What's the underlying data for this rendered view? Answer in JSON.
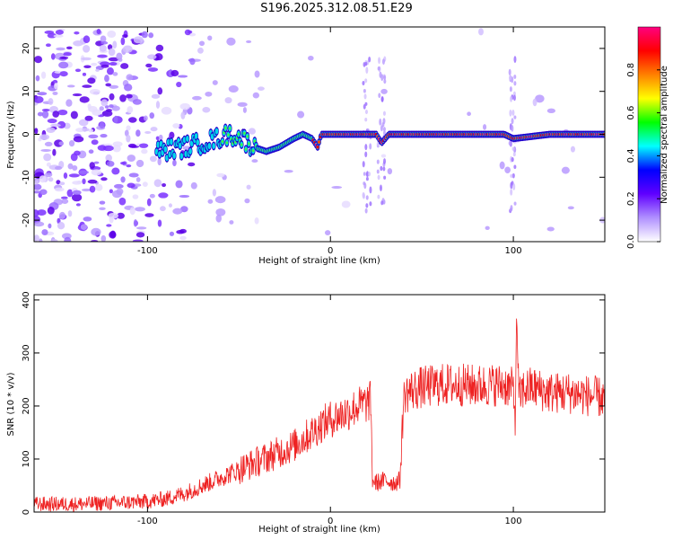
{
  "title": "S196.2025.312.08.51.E29",
  "chart_data": [
    {
      "type": "heatmap",
      "xlabel": "Height of straight line (km)",
      "ylabel": "Frequency (Hz)",
      "xlim": [
        -162,
        150
      ],
      "ylim": [
        -25,
        25
      ],
      "xticks": [
        -100,
        0,
        100
      ],
      "yticks": [
        -20,
        -10,
        0,
        10,
        20
      ],
      "colorbar": {
        "label": "Normalized spectral amplitude",
        "range": [
          0,
          1
        ],
        "ticks": [
          "0.0",
          "0.2",
          "0.4",
          "0.6",
          "0.8"
        ],
        "colors": [
          "#ffffff",
          "#b090ff",
          "#6000ff",
          "#0000ff",
          "#00ffff",
          "#00ff00",
          "#ffff00",
          "#ff8000",
          "#ff0000",
          "#ff0080"
        ]
      },
      "ridge": {
        "name": "dominant frequency",
        "x": [
          -95,
          -80,
          -70,
          -62,
          -55,
          -48,
          -42,
          -35,
          -28,
          -20,
          -15,
          -10,
          -7,
          -5,
          0,
          10,
          20,
          25,
          28,
          32,
          40,
          60,
          80,
          95,
          100,
          120,
          150
        ],
        "y": [
          -4,
          -3,
          -2,
          -1,
          0,
          -1,
          -3,
          -4,
          -3,
          -1,
          0,
          -1,
          -3,
          0,
          0,
          0,
          0,
          0,
          -2,
          0,
          0,
          0,
          0,
          0,
          -1,
          0,
          0
        ],
        "peak_amplitude_x_range": [
          -10,
          150
        ]
      }
    },
    {
      "type": "line",
      "xlabel": "Height of straight line (km)",
      "ylabel": "SNR (10 * v/v)",
      "xlim": [
        -162,
        150
      ],
      "ylim": [
        0,
        410
      ],
      "xticks": [
        -100,
        0,
        100
      ],
      "yticks": [
        0,
        100,
        200,
        300,
        400
      ],
      "series": [
        {
          "color": "#ee2222",
          "x": [
            -162,
            -140,
            -120,
            -100,
            -90,
            -80,
            -70,
            -60,
            -50,
            -40,
            -30,
            -20,
            -10,
            -5,
            0,
            5,
            10,
            15,
            20,
            22,
            23,
            25,
            30,
            35,
            38,
            40,
            41,
            45,
            50,
            60,
            70,
            80,
            90,
            95,
            100,
            101,
            102,
            103,
            105,
            110,
            120,
            130,
            140,
            150
          ],
          "y": [
            15,
            15,
            17,
            20,
            25,
            35,
            50,
            65,
            80,
            95,
            110,
            125,
            150,
            165,
            175,
            182,
            190,
            200,
            205,
            210,
            60,
            55,
            60,
            55,
            60,
            210,
            225,
            230,
            235,
            240,
            240,
            238,
            240,
            240,
            232,
            180,
            370,
            210,
            230,
            235,
            225,
            225,
            220,
            215
          ],
          "noise": 22
        }
      ]
    }
  ]
}
